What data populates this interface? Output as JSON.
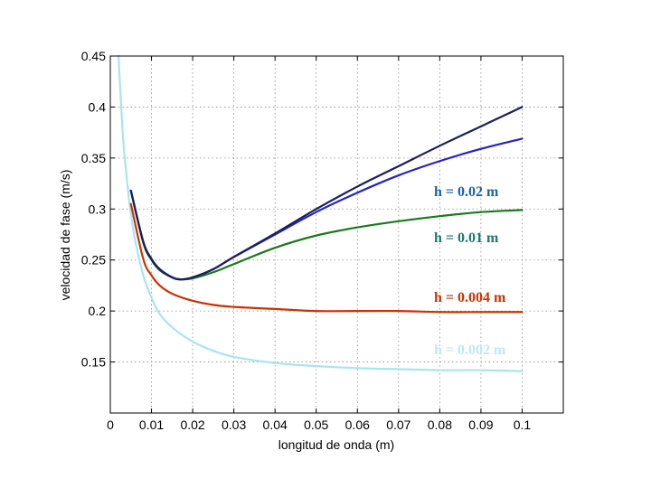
{
  "chart_data": {
    "type": "line",
    "title": "",
    "xlabel": "longitud de onda (m)",
    "ylabel": "velocidad de fase (m/s)",
    "xlim": [
      0,
      0.11
    ],
    "ylim": [
      0.1,
      0.45
    ],
    "grid": true,
    "x_ticks": [
      0,
      0.01,
      0.02,
      0.03,
      0.04,
      0.05,
      0.06,
      0.07,
      0.08,
      0.09,
      0.1
    ],
    "x_tick_labels": [
      "0",
      "0.01",
      "0.02",
      "0.03",
      "0.04",
      "0.05",
      "0.06",
      "0.07",
      "0.08",
      "0.09",
      "0.1"
    ],
    "y_ticks": [
      0.15,
      0.2,
      0.25,
      0.3,
      0.35,
      0.4,
      0.45
    ],
    "y_tick_labels": [
      "0.15",
      "0.2",
      "0.25",
      "0.3",
      "0.35",
      "0.4",
      "0.45"
    ],
    "series": [
      {
        "name": "deep-water",
        "label": "",
        "color": "#1a1f5c",
        "x": [
          0.005,
          0.008,
          0.01,
          0.012,
          0.015,
          0.017,
          0.02,
          0.025,
          0.03,
          0.04,
          0.05,
          0.06,
          0.07,
          0.08,
          0.09,
          0.1
        ],
        "y": [
          0.318,
          0.268,
          0.251,
          0.241,
          0.233,
          0.231,
          0.233,
          0.241,
          0.253,
          0.276,
          0.3,
          0.322,
          0.342,
          0.362,
          0.381,
          0.4
        ]
      },
      {
        "name": "h-0.02",
        "label": "h = 0.02 m",
        "color": "#2323c8",
        "label_color": "#1a5fb4",
        "x": [
          0.005,
          0.008,
          0.01,
          0.012,
          0.015,
          0.017,
          0.02,
          0.025,
          0.03,
          0.04,
          0.05,
          0.06,
          0.07,
          0.08,
          0.09,
          0.1
        ],
        "y": [
          0.318,
          0.268,
          0.251,
          0.241,
          0.233,
          0.231,
          0.233,
          0.241,
          0.253,
          0.275,
          0.297,
          0.316,
          0.333,
          0.347,
          0.359,
          0.369
        ]
      },
      {
        "name": "h-0.01",
        "label": "h = 0.01 m",
        "color": "#1a7a1a",
        "label_color": "#1a7a6a",
        "x": [
          0.005,
          0.008,
          0.01,
          0.012,
          0.015,
          0.017,
          0.02,
          0.025,
          0.03,
          0.04,
          0.05,
          0.06,
          0.07,
          0.08,
          0.09,
          0.1
        ],
        "y": [
          0.318,
          0.267,
          0.25,
          0.24,
          0.233,
          0.231,
          0.232,
          0.238,
          0.246,
          0.262,
          0.274,
          0.282,
          0.288,
          0.293,
          0.297,
          0.299
        ]
      },
      {
        "name": "h-0.004",
        "label": "h = 0.004 m",
        "color": "#cc3300",
        "label_color": "#cc3300",
        "x": [
          0.005,
          0.008,
          0.01,
          0.012,
          0.015,
          0.02,
          0.025,
          0.03,
          0.04,
          0.05,
          0.06,
          0.07,
          0.08,
          0.09,
          0.1
        ],
        "y": [
          0.305,
          0.251,
          0.235,
          0.225,
          0.217,
          0.21,
          0.206,
          0.204,
          0.202,
          0.2,
          0.2,
          0.2,
          0.199,
          0.199,
          0.199
        ]
      },
      {
        "name": "h-0.002",
        "label": "h = 0.002 m",
        "color": "#a8e4f2",
        "label_color": "#bfe8f2",
        "x": [
          0.002,
          0.003,
          0.004,
          0.005,
          0.006,
          0.008,
          0.01,
          0.012,
          0.015,
          0.02,
          0.025,
          0.03,
          0.04,
          0.05,
          0.06,
          0.07,
          0.08,
          0.09,
          0.1
        ],
        "y": [
          0.45,
          0.375,
          0.33,
          0.295,
          0.27,
          0.235,
          0.213,
          0.197,
          0.184,
          0.17,
          0.161,
          0.155,
          0.149,
          0.146,
          0.144,
          0.143,
          0.142,
          0.142,
          0.141
        ]
      }
    ]
  }
}
